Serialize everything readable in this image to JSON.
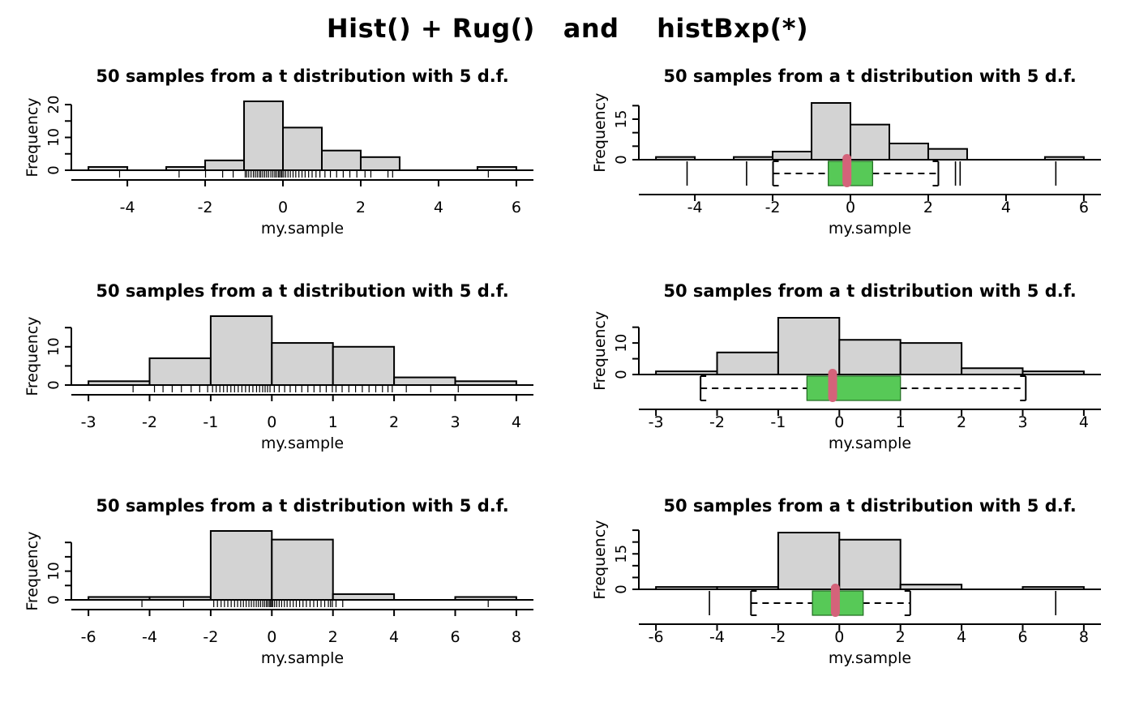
{
  "main_title": "Hist() + Rug()   and    histBxp(*)",
  "colors": {
    "bar_fill": "#d3d3d3",
    "bar_stroke": "#000000",
    "axis": "#000000",
    "box_fill": "#57c957",
    "box_stroke": "#267326",
    "median_fill": "#d4637a"
  },
  "chart_data": [
    {
      "row": 1,
      "type": "histogram",
      "title": "50 samples from a t distribution with 5 d.f.",
      "xlabel": "my.sample",
      "ylabel": "Frequency",
      "bin_start": -5,
      "bin_width": 1,
      "counts": [
        1,
        0,
        1,
        3,
        21,
        13,
        6,
        4,
        0,
        0,
        1
      ],
      "xlim": [
        -5.44,
        6.44
      ],
      "xticks": [
        -4,
        -2,
        0,
        2,
        4,
        6
      ],
      "left_yticks": [
        0,
        5,
        10,
        15,
        20
      ],
      "left_ytick_labels": [
        "0",
        "",
        "10",
        "",
        "20"
      ],
      "right_yticks": [
        0,
        5,
        10,
        15,
        20
      ],
      "right_ytick_labels": [
        "0",
        "",
        "",
        "15",
        ""
      ],
      "rug": [
        -4.2,
        -2.67,
        -1.99,
        -1.55,
        -1.28,
        -0.97,
        -0.93,
        -0.88,
        -0.82,
        -0.76,
        -0.71,
        -0.66,
        -0.61,
        -0.57,
        -0.52,
        -0.47,
        -0.42,
        -0.37,
        -0.31,
        -0.26,
        -0.21,
        -0.17,
        -0.12,
        -0.09,
        -0.05,
        -0.02,
        0.02,
        0.07,
        0.13,
        0.19,
        0.26,
        0.33,
        0.41,
        0.49,
        0.57,
        0.66,
        0.75,
        0.85,
        0.95,
        1.08,
        1.22,
        1.38,
        1.55,
        1.72,
        1.9,
        2.11,
        2.26,
        2.7,
        2.82,
        5.28
      ],
      "box": {
        "q1": -0.57,
        "median": -0.09,
        "q3": 0.57,
        "whisker_low": -1.99,
        "whisker_high": 2.26,
        "outliers": [
          -4.2,
          -2.67,
          2.7,
          2.82,
          5.28
        ]
      }
    },
    {
      "row": 2,
      "type": "histogram",
      "title": "50 samples from a t distribution with 5 d.f.",
      "xlabel": "my.sample",
      "ylabel": "Frequency",
      "bin_start": -3,
      "bin_width": 1,
      "counts": [
        1,
        7,
        18,
        11,
        10,
        2,
        1
      ],
      "xlim": [
        -3.28,
        4.28
      ],
      "xticks": [
        -3,
        -2,
        -1,
        0,
        1,
        2,
        3,
        4
      ],
      "left_yticks": [
        0,
        5,
        10,
        15
      ],
      "left_ytick_labels": [
        "0",
        "",
        "10",
        ""
      ],
      "right_yticks": [
        0,
        5,
        10,
        15
      ],
      "right_ytick_labels": [
        "0",
        "",
        "10",
        ""
      ],
      "rug": [
        -2.27,
        -1.92,
        -1.78,
        -1.63,
        -1.48,
        -1.32,
        -1.18,
        -1.05,
        -0.97,
        -0.91,
        -0.85,
        -0.79,
        -0.73,
        -0.67,
        -0.61,
        -0.55,
        -0.49,
        -0.43,
        -0.37,
        -0.31,
        -0.25,
        -0.2,
        -0.15,
        -0.11,
        -0.07,
        -0.03,
        0.04,
        0.12,
        0.21,
        0.3,
        0.39,
        0.49,
        0.59,
        0.69,
        0.79,
        0.89,
        0.99,
        1.05,
        1.15,
        1.26,
        1.37,
        1.48,
        1.59,
        1.7,
        1.81,
        1.9,
        1.97,
        2.2,
        2.6,
        3.05
      ],
      "box": {
        "q1": -0.53,
        "median": -0.11,
        "q3": 1.0,
        "whisker_low": -2.27,
        "whisker_high": 3.05,
        "outliers": []
      }
    },
    {
      "row": 3,
      "type": "histogram",
      "title": "50 samples from a t distribution with 5 d.f.",
      "xlabel": "my.sample",
      "ylabel": "Frequency",
      "bin_start": -6,
      "bin_width": 2,
      "counts": [
        1,
        1,
        24,
        21,
        2,
        0,
        1
      ],
      "xlim": [
        -6.56,
        8.56
      ],
      "xticks": [
        -6,
        -4,
        -2,
        0,
        2,
        4,
        6,
        8
      ],
      "left_yticks": [
        0,
        5,
        10,
        15,
        20
      ],
      "left_ytick_labels": [
        "0",
        "",
        "10",
        "",
        ""
      ],
      "right_yticks": [
        0,
        5,
        10,
        15,
        20,
        25
      ],
      "right_ytick_labels": [
        "0",
        "",
        "",
        "15",
        "",
        ""
      ],
      "rug": [
        -4.25,
        -2.89,
        -1.9,
        -1.78,
        -1.66,
        -1.55,
        -1.44,
        -1.33,
        -1.22,
        -1.12,
        -1.02,
        -0.93,
        -0.84,
        -0.75,
        -0.67,
        -0.59,
        -0.51,
        -0.44,
        -0.37,
        -0.3,
        -0.24,
        -0.18,
        -0.13,
        -0.08,
        -0.04,
        -0.01,
        0.03,
        0.09,
        0.16,
        0.24,
        0.32,
        0.41,
        0.5,
        0.6,
        0.7,
        0.8,
        0.91,
        1.02,
        1.13,
        1.25,
        1.37,
        1.49,
        1.61,
        1.73,
        1.85,
        1.92,
        1.98,
        2.1,
        2.32,
        7.08
      ],
      "box": {
        "q1": -0.88,
        "median": -0.13,
        "q3": 0.78,
        "whisker_low": -2.89,
        "whisker_high": 2.32,
        "outliers": [
          -4.25,
          7.08
        ]
      }
    }
  ]
}
